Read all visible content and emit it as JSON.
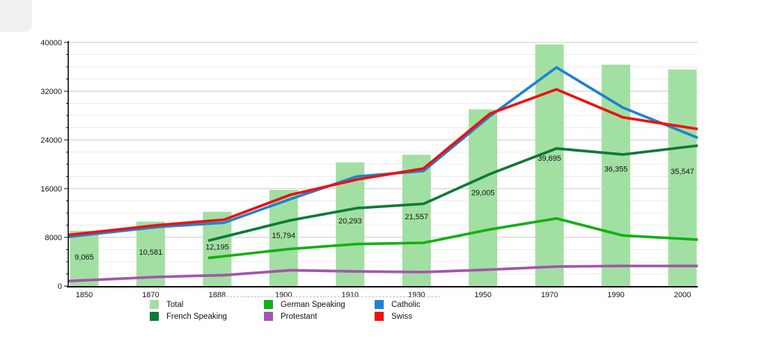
{
  "chart_data": {
    "type": "bar+line",
    "title": "",
    "categories": [
      "1850",
      "1870",
      "1888",
      "1900",
      "1910",
      "1930",
      "1950",
      "1970",
      "1990",
      "2000"
    ],
    "bars": {
      "name": "Total",
      "color": "#a2dfa2",
      "values": [
        9065,
        10581,
        12195,
        15794,
        20293,
        21557,
        29005,
        39695,
        36355,
        35547
      ],
      "labels": [
        "9,065",
        "10,581",
        "12,195",
        "15,794",
        "20,293",
        "21,557",
        "29,005",
        "39,695",
        "36,355",
        "35,547"
      ]
    },
    "series": [
      {
        "name": "German Speaking",
        "color": "#14b014",
        "values": [
          null,
          null,
          4900,
          6100,
          6900,
          7100,
          9300,
          11100,
          8300,
          7700
        ]
      },
      {
        "name": "French Speaking",
        "color": "#0e7a3a",
        "values": [
          null,
          null,
          8100,
          10800,
          12800,
          13500,
          18400,
          22600,
          21600,
          22900
        ]
      },
      {
        "name": "Protestant",
        "color": "#a455ad",
        "values": [
          1000,
          1500,
          1800,
          2600,
          2400,
          2300,
          2700,
          3200,
          3300,
          3300
        ]
      },
      {
        "name": "Catholic",
        "color": "#1e82d2",
        "values": [
          8500,
          9700,
          10400,
          14300,
          18000,
          18900,
          27900,
          35900,
          29300,
          24900
        ]
      },
      {
        "name": "Swiss",
        "color": "#ee1010",
        "values": [
          8800,
          10000,
          10900,
          15000,
          17500,
          19300,
          28300,
          32300,
          27700,
          26000
        ]
      }
    ],
    "ylim": [
      0,
      40000
    ],
    "yticks": {
      "major": 8000,
      "minor": 2000,
      "labels": [
        "0",
        "8000",
        "16000",
        "24000",
        "32000",
        "40000"
      ]
    },
    "grid": "horizontal-minor-and-major",
    "legend_position": "bottom"
  },
  "legend": {
    "items": [
      {
        "label": "Total",
        "color": "#a2dfa2"
      },
      {
        "label": "German Speaking",
        "color": "#14b014"
      },
      {
        "label": "Catholic",
        "color": "#1e82d2"
      },
      {
        "label": "French Speaking",
        "color": "#0e7a3a"
      },
      {
        "label": "Protestant",
        "color": "#a455ad"
      },
      {
        "label": "Swiss",
        "color": "#ee1010"
      }
    ]
  }
}
